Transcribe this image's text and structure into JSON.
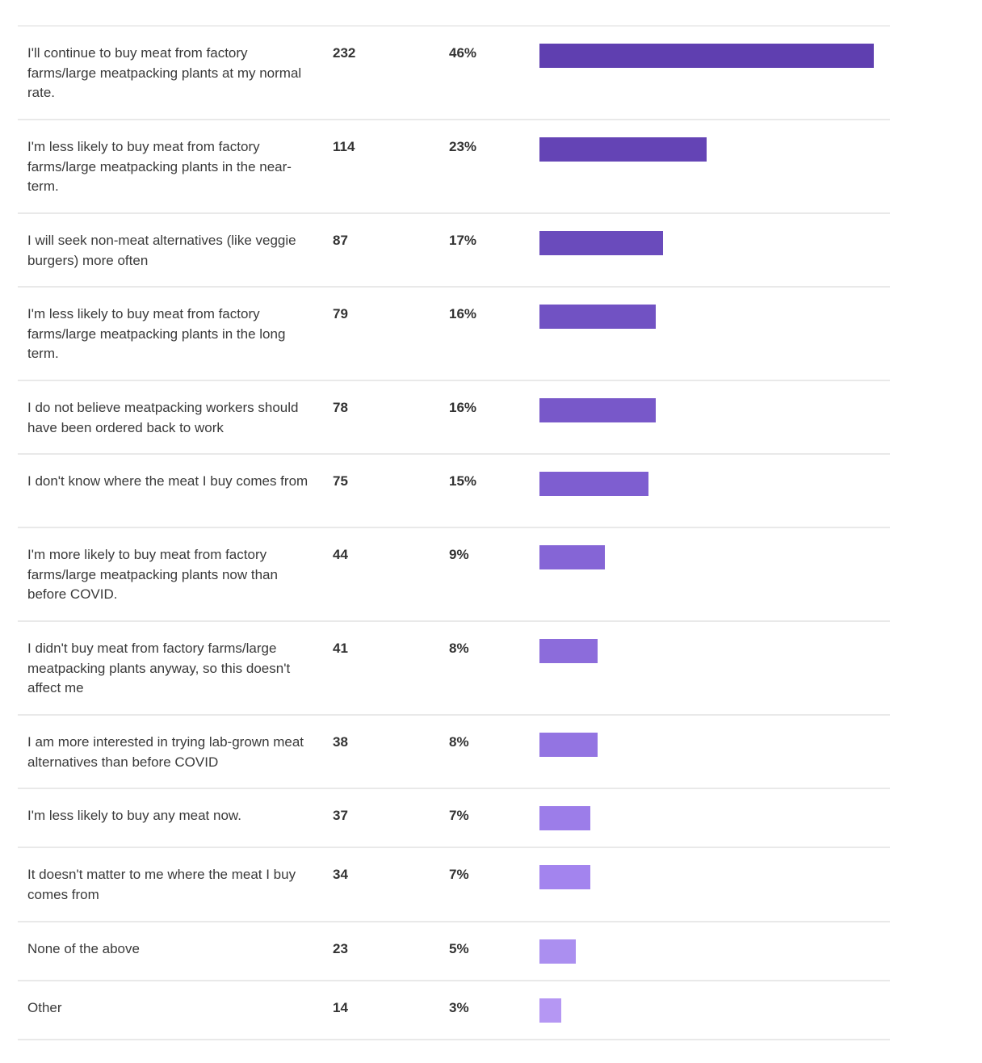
{
  "chart_data": {
    "type": "bar",
    "orientation": "horizontal",
    "rows": [
      {
        "label": "I'll continue to buy meat from factory farms/large meatpacking plants at my normal rate.",
        "count": "232",
        "percent": "46%",
        "value": 46,
        "color": "#5f3fb0"
      },
      {
        "label": "I'm less likely to buy meat from factory farms/large meatpacking plants in the near-term.",
        "count": "114",
        "percent": "23%",
        "value": 23,
        "color": "#6444b5"
      },
      {
        "label": "I will seek non-meat alternatives (like veggie burgers) more often",
        "count": "87",
        "percent": "17%",
        "value": 17,
        "color": "#6a4bbc"
      },
      {
        "label": "I'm less likely to buy meat from factory farms/large meatpacking plants in the long term.",
        "count": "79",
        "percent": "16%",
        "value": 16,
        "color": "#7152c3"
      },
      {
        "label": "I do not believe meatpacking workers should have been ordered back to work",
        "count": "78",
        "percent": "16%",
        "value": 16,
        "color": "#7858c9"
      },
      {
        "label": "I don't know where the meat I buy comes from",
        "count": "75",
        "percent": "15%",
        "value": 15,
        "color": "#7e5ed0"
      },
      {
        "label": "I'm more likely to buy meat from factory farms/large meatpacking plants now than before COVID.",
        "count": "44",
        "percent": "9%",
        "value": 9,
        "color": "#8565d6"
      },
      {
        "label": "I didn't buy meat from factory farms/large meatpacking plants anyway, so this doesn't affect me",
        "count": "41",
        "percent": "8%",
        "value": 8,
        "color": "#8c6cdb"
      },
      {
        "label": "I am more interested in trying lab-grown meat alternatives than before COVID",
        "count": "38",
        "percent": "8%",
        "value": 8,
        "color": "#9374e2"
      },
      {
        "label": "I'm less likely to buy any meat now.",
        "count": "37",
        "percent": "7%",
        "value": 7,
        "color": "#9c7de9"
      },
      {
        "label": "It doesn't matter to me where the meat I buy comes from",
        "count": "34",
        "percent": "7%",
        "value": 7,
        "color": "#a384ee"
      },
      {
        "label": "None of the above",
        "count": "23",
        "percent": "5%",
        "value": 5,
        "color": "#ab8ff0"
      },
      {
        "label": "Other",
        "count": "14",
        "percent": "3%",
        "value": 3,
        "color": "#b597f3"
      }
    ]
  }
}
